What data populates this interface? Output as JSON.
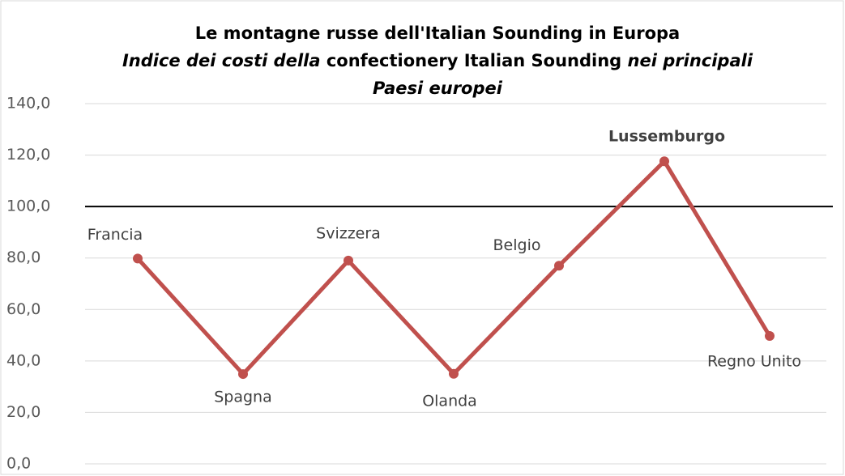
{
  "chart_data": {
    "type": "line",
    "title": "Le montagne russe dell'Italian Sounding in Europa",
    "subtitle": [
      [
        {
          "text": "Indice dei costi della",
          "italic": true
        },
        {
          "text": " confectionery Italian Sounding ",
          "italic": false
        },
        {
          "text": "nei principali",
          "italic": true
        }
      ],
      [
        {
          "text": "Paesi europei",
          "italic": true
        }
      ]
    ],
    "categories": [
      "Francia",
      "Spagna",
      "Svizzera",
      "Olanda",
      "Belgio",
      "Lussemburgo",
      "Regno Unito"
    ],
    "series": [
      {
        "name": "Indice",
        "color": "#c0504d",
        "values": [
          79.8,
          34.9,
          79,
          35,
          77,
          117.6,
          49.7
        ]
      }
    ],
    "ylim": [
      0,
      140
    ],
    "yticks": [
      {
        "value": 0,
        "label": "0,0"
      },
      {
        "value": 20,
        "label": "20,0"
      },
      {
        "value": 40,
        "label": "40,0"
      },
      {
        "value": 60,
        "label": "60,0"
      },
      {
        "value": 80,
        "label": "80,0"
      },
      {
        "value": 100,
        "label": "100,0"
      },
      {
        "value": 120,
        "label": "120,0"
      },
      {
        "value": 140,
        "label": "140,0"
      }
    ],
    "grid": true,
    "reference_line": 100
  }
}
